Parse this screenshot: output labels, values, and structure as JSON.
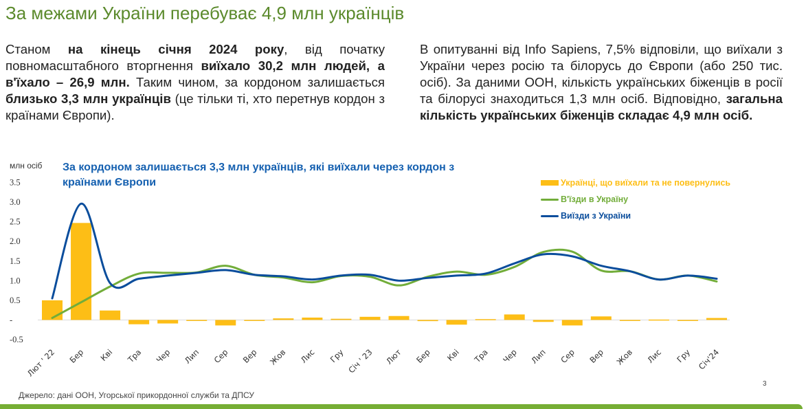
{
  "slide": {
    "title": "За межами України перебуває 4,9 млн українців",
    "page_number": "3",
    "source": "Джерело: дані ООН, Угорської прикордонної служби та ДПСУ",
    "colors": {
      "title_green": "#5b8a2c",
      "chart_title_blue": "#1560b0",
      "bar_yellow": "#fdbe16",
      "green_line": "#72ad3a",
      "blue_line": "#0a4d9c",
      "stripe_green": "#76ae34"
    }
  },
  "left_paragraph": [
    {
      "t": "Станом ",
      "b": false
    },
    {
      "t": "на кінець січня 2024 року",
      "b": true
    },
    {
      "t": ", від початку повномасштабного вторгнення ",
      "b": false
    },
    {
      "t": "виїхало 30,2 млн людей, а в'їхало – 26,9 млн.",
      "b": true
    },
    {
      "t": " Таким чином, за кордоном залишається ",
      "b": false
    },
    {
      "t": "близько 3,3 млн українців",
      "b": true
    },
    {
      "t": " (це тільки ті, хто перетнув кордон з країнами Європи).",
      "b": false
    }
  ],
  "right_paragraph": [
    {
      "t": "В опитуванні від Info Sapiens, 7,5% відповіли, що виїхали з України  через росію та білорусь до Європи (або 250 тис. осіб). За даними ООН, кількість українських біженців в росії та білорусі знаходиться 1,3 млн осіб. Відповідно, ",
      "b": false
    },
    {
      "t": "загальна кількість українських біженців складає 4,9 млн осіб.",
      "b": true
    }
  ],
  "chart_data": {
    "type": "bar+line",
    "title": "За кордоном залишається 3,3 млн українців, які виїхали через кордон з країнами Європи",
    "ylabel": "млн осіб",
    "xlabel": "",
    "ylim": [
      -0.5,
      3.5
    ],
    "yticks": [
      3.5,
      3.0,
      2.5,
      2.0,
      1.5,
      1.0,
      0.5,
      0,
      -0.5
    ],
    "ytick_labels": [
      "3.5",
      "3.0",
      "2.5",
      "2.0",
      "1.5",
      "1.0",
      "0.5",
      "-",
      "-0.5"
    ],
    "grid": false,
    "legend_position": "top-right",
    "categories": [
      "Лют ' 22",
      "Бер",
      "Кві",
      "Тра",
      "Чер",
      "Лип",
      "Сер",
      "Вер",
      "Жов",
      "Лис",
      "Гру",
      "Січ ' 23",
      "Лют",
      "Бер",
      "Кві",
      "Тра",
      "Чер",
      "Лип",
      "Сер",
      "Вер",
      "Жов",
      "Лис",
      "Гру",
      "Січ'24"
    ],
    "series": [
      {
        "name": "Українці, що виїхали та не повернулись",
        "type": "bar",
        "color": "#fdbe16",
        "values": [
          0.5,
          2.47,
          0.24,
          -0.11,
          -0.09,
          -0.02,
          -0.14,
          0.0,
          0.04,
          0.06,
          0.03,
          0.08,
          0.1,
          -0.03,
          -0.12,
          0.02,
          0.14,
          -0.05,
          -0.14,
          0.09,
          -0.02,
          0.01,
          0.0,
          0.05
        ]
      },
      {
        "name": "В'їзди в Україну",
        "type": "line",
        "color": "#72ad3a",
        "values": [
          0.05,
          0.45,
          0.85,
          1.18,
          1.2,
          1.21,
          1.38,
          1.15,
          1.08,
          0.96,
          1.12,
          1.1,
          0.88,
          1.1,
          1.23,
          1.15,
          1.35,
          1.73,
          1.74,
          1.26,
          1.24,
          1.03,
          1.13,
          0.98
        ]
      },
      {
        "name": "Виїзди з України",
        "type": "line",
        "color": "#0a4d9c",
        "values": [
          0.55,
          2.96,
          0.94,
          1.05,
          1.13,
          1.2,
          1.27,
          1.15,
          1.11,
          1.03,
          1.13,
          1.15,
          1.0,
          1.07,
          1.13,
          1.18,
          1.44,
          1.67,
          1.62,
          1.38,
          1.24,
          1.03,
          1.13,
          1.05
        ]
      }
    ]
  }
}
